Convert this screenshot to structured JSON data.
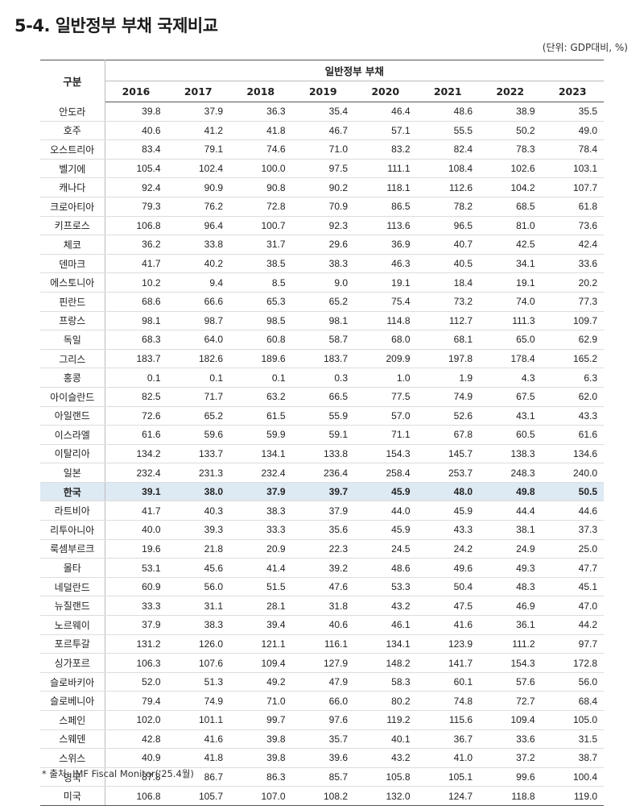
{
  "title": "5-4. 일반정부 부채 국제비교",
  "unit": "(단위: GDP대비, %)",
  "table": {
    "row_header": "구분",
    "group_header": "일반정부 부채",
    "years": [
      "2016",
      "2017",
      "2018",
      "2019",
      "2020",
      "2021",
      "2022",
      "2023"
    ],
    "rows": [
      {
        "name": "안도라",
        "values": [
          "39.8",
          "37.9",
          "36.3",
          "35.4",
          "46.4",
          "48.6",
          "38.9",
          "35.5"
        ]
      },
      {
        "name": "호주",
        "values": [
          "40.6",
          "41.2",
          "41.8",
          "46.7",
          "57.1",
          "55.5",
          "50.2",
          "49.0"
        ]
      },
      {
        "name": "오스트리아",
        "values": [
          "83.4",
          "79.1",
          "74.6",
          "71.0",
          "83.2",
          "82.4",
          "78.3",
          "78.4"
        ]
      },
      {
        "name": "벨기에",
        "values": [
          "105.4",
          "102.4",
          "100.0",
          "97.5",
          "111.1",
          "108.4",
          "102.6",
          "103.1"
        ]
      },
      {
        "name": "캐나다",
        "values": [
          "92.4",
          "90.9",
          "90.8",
          "90.2",
          "118.1",
          "112.6",
          "104.2",
          "107.7"
        ]
      },
      {
        "name": "크로아티아",
        "values": [
          "79.3",
          "76.2",
          "72.8",
          "70.9",
          "86.5",
          "78.2",
          "68.5",
          "61.8"
        ]
      },
      {
        "name": "키프로스",
        "values": [
          "106.8",
          "96.4",
          "100.7",
          "92.3",
          "113.6",
          "96.5",
          "81.0",
          "73.6"
        ]
      },
      {
        "name": "체코",
        "values": [
          "36.2",
          "33.8",
          "31.7",
          "29.6",
          "36.9",
          "40.7",
          "42.5",
          "42.4"
        ]
      },
      {
        "name": "덴마크",
        "values": [
          "41.7",
          "40.2",
          "38.5",
          "38.3",
          "46.3",
          "40.5",
          "34.1",
          "33.6"
        ]
      },
      {
        "name": "에스토니아",
        "values": [
          "10.2",
          "9.4",
          "8.5",
          "9.0",
          "19.1",
          "18.4",
          "19.1",
          "20.2"
        ]
      },
      {
        "name": "핀란드",
        "values": [
          "68.6",
          "66.6",
          "65.3",
          "65.2",
          "75.4",
          "73.2",
          "74.0",
          "77.3"
        ]
      },
      {
        "name": "프랑스",
        "values": [
          "98.1",
          "98.7",
          "98.5",
          "98.1",
          "114.8",
          "112.7",
          "111.3",
          "109.7"
        ]
      },
      {
        "name": "독일",
        "values": [
          "68.3",
          "64.0",
          "60.8",
          "58.7",
          "68.0",
          "68.1",
          "65.0",
          "62.9"
        ]
      },
      {
        "name": "그리스",
        "values": [
          "183.7",
          "182.6",
          "189.6",
          "183.7",
          "209.9",
          "197.8",
          "178.4",
          "165.2"
        ]
      },
      {
        "name": "홍콩",
        "values": [
          "0.1",
          "0.1",
          "0.1",
          "0.3",
          "1.0",
          "1.9",
          "4.3",
          "6.3"
        ]
      },
      {
        "name": "아이슬란드",
        "values": [
          "82.5",
          "71.7",
          "63.2",
          "66.5",
          "77.5",
          "74.9",
          "67.5",
          "62.0"
        ]
      },
      {
        "name": "아일랜드",
        "values": [
          "72.6",
          "65.2",
          "61.5",
          "55.9",
          "57.0",
          "52.6",
          "43.1",
          "43.3"
        ]
      },
      {
        "name": "이스라엘",
        "values": [
          "61.6",
          "59.6",
          "59.9",
          "59.1",
          "71.1",
          "67.8",
          "60.5",
          "61.6"
        ]
      },
      {
        "name": "이탈리아",
        "values": [
          "134.2",
          "133.7",
          "134.1",
          "133.8",
          "154.3",
          "145.7",
          "138.3",
          "134.6"
        ]
      },
      {
        "name": "일본",
        "values": [
          "232.4",
          "231.3",
          "232.4",
          "236.4",
          "258.4",
          "253.7",
          "248.3",
          "240.0"
        ]
      },
      {
        "name": "한국",
        "values": [
          "39.1",
          "38.0",
          "37.9",
          "39.7",
          "45.9",
          "48.0",
          "49.8",
          "50.5"
        ],
        "highlight": true
      },
      {
        "name": "라트비아",
        "values": [
          "41.7",
          "40.3",
          "38.3",
          "37.9",
          "44.0",
          "45.9",
          "44.4",
          "44.6"
        ]
      },
      {
        "name": "리투아니아",
        "values": [
          "40.0",
          "39.3",
          "33.3",
          "35.6",
          "45.9",
          "43.3",
          "38.1",
          "37.3"
        ]
      },
      {
        "name": "룩셈부르크",
        "values": [
          "19.6",
          "21.8",
          "20.9",
          "22.3",
          "24.5",
          "24.2",
          "24.9",
          "25.0"
        ]
      },
      {
        "name": "몰타",
        "values": [
          "53.1",
          "45.6",
          "41.4",
          "39.2",
          "48.6",
          "49.6",
          "49.3",
          "47.7"
        ]
      },
      {
        "name": "네덜란드",
        "values": [
          "60.9",
          "56.0",
          "51.5",
          "47.6",
          "53.3",
          "50.4",
          "48.3",
          "45.1"
        ]
      },
      {
        "name": "뉴질랜드",
        "values": [
          "33.3",
          "31.1",
          "28.1",
          "31.8",
          "43.2",
          "47.5",
          "46.9",
          "47.0"
        ]
      },
      {
        "name": "노르웨이",
        "values": [
          "37.9",
          "38.3",
          "39.4",
          "40.6",
          "46.1",
          "41.6",
          "36.1",
          "44.2"
        ]
      },
      {
        "name": "포르투갈",
        "values": [
          "131.2",
          "126.0",
          "121.1",
          "116.1",
          "134.1",
          "123.9",
          "111.2",
          "97.7"
        ]
      },
      {
        "name": "싱가포르",
        "values": [
          "106.3",
          "107.6",
          "109.4",
          "127.9",
          "148.2",
          "141.7",
          "154.3",
          "172.8"
        ]
      },
      {
        "name": "슬로바키아",
        "values": [
          "52.0",
          "51.3",
          "49.2",
          "47.9",
          "58.3",
          "60.1",
          "57.6",
          "56.0"
        ]
      },
      {
        "name": "슬로베니아",
        "values": [
          "79.4",
          "74.9",
          "71.0",
          "66.0",
          "80.2",
          "74.8",
          "72.7",
          "68.4"
        ]
      },
      {
        "name": "스페인",
        "values": [
          "102.0",
          "101.1",
          "99.7",
          "97.6",
          "119.2",
          "115.6",
          "109.4",
          "105.0"
        ]
      },
      {
        "name": "스웨덴",
        "values": [
          "42.8",
          "41.6",
          "39.8",
          "35.7",
          "40.1",
          "36.7",
          "33.6",
          "31.5"
        ]
      },
      {
        "name": "스위스",
        "values": [
          "40.9",
          "41.8",
          "39.8",
          "39.6",
          "43.2",
          "41.0",
          "37.2",
          "38.7"
        ]
      },
      {
        "name": "영국",
        "values": [
          "87.8",
          "86.7",
          "86.3",
          "85.7",
          "105.8",
          "105.1",
          "99.6",
          "100.4"
        ]
      },
      {
        "name": "미국",
        "values": [
          "106.8",
          "105.7",
          "107.0",
          "108.2",
          "132.0",
          "124.7",
          "118.8",
          "119.0"
        ]
      }
    ]
  },
  "note": "* 출처: IMF Fiscal Monitor('25.4월)",
  "colors": {
    "highlight_row": "#dde9f3"
  }
}
